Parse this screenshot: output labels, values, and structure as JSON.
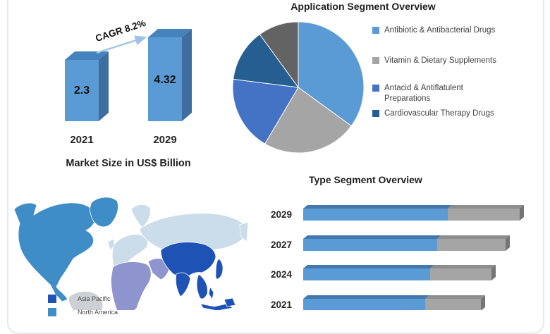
{
  "map": {
    "legend": [
      {
        "label": "Asia Pacific",
        "color": "#1E53B5"
      },
      {
        "label": "North America",
        "color": "#3F8DC6"
      }
    ],
    "regions": [
      {
        "name": "north-america",
        "color": "#3F8DC6"
      },
      {
        "name": "greenland",
        "color": "#3F8DC6"
      },
      {
        "name": "south-america",
        "color": "#CDD1D5"
      },
      {
        "name": "europe",
        "color": "#CBDCEA"
      },
      {
        "name": "russia-central-asia",
        "color": "#CBDCEA"
      },
      {
        "name": "middle-east-africa",
        "color": "#8D94CE"
      },
      {
        "name": "asia-pacific",
        "color": "#1E53B5"
      }
    ]
  },
  "chart_data": [
    {
      "id": "market-size",
      "type": "bar",
      "orientation": "vertical-3d",
      "title": "Market Size in US$ Billion",
      "annotation": "CAGR 8.2%",
      "categories": [
        "2021",
        "2029"
      ],
      "values": [
        2.3,
        4.32
      ],
      "value_labels": [
        "2.3",
        "4.32"
      ],
      "arrow_color": "#9DC3E6",
      "colors3d": {
        "front": "#5B9BD5",
        "top": "#4583BD",
        "side": "#3D6E9E"
      }
    },
    {
      "id": "application-segment",
      "type": "pie",
      "title": "Application Segment Overview",
      "labels": [
        "Antibiotic & Antibacterial Drugs",
        "Vitamin & Dietary Supplements",
        "Antacid & Antiflatulent Preparations",
        "Cardiovascular Therapy Drugs",
        ""
      ],
      "values": [
        35,
        23.5,
        18.5,
        13,
        10
      ],
      "colors": [
        "#5B9BD5",
        "#A5A5A5",
        "#4472C4",
        "#255E91",
        "#636363"
      ],
      "legend_position": "right"
    },
    {
      "id": "type-segment",
      "type": "bar",
      "orientation": "horizontal-stacked-3d",
      "title": "Type Segment Overview",
      "categories": [
        "2029",
        "2027",
        "2024",
        "2021"
      ],
      "series": [
        {
          "name": "segment-1",
          "color": "#5B9BD5",
          "values": [
            205,
            190,
            180,
            173
          ]
        },
        {
          "name": "segment-2",
          "color": "#A5A5A5",
          "values": [
            102,
            97,
            87,
            79
          ]
        }
      ],
      "units": "relative width (no axis shown)",
      "colors3d": {
        "top1": "#4278AE",
        "top2": "#8D8D8D",
        "cap": "#757575"
      }
    }
  ]
}
